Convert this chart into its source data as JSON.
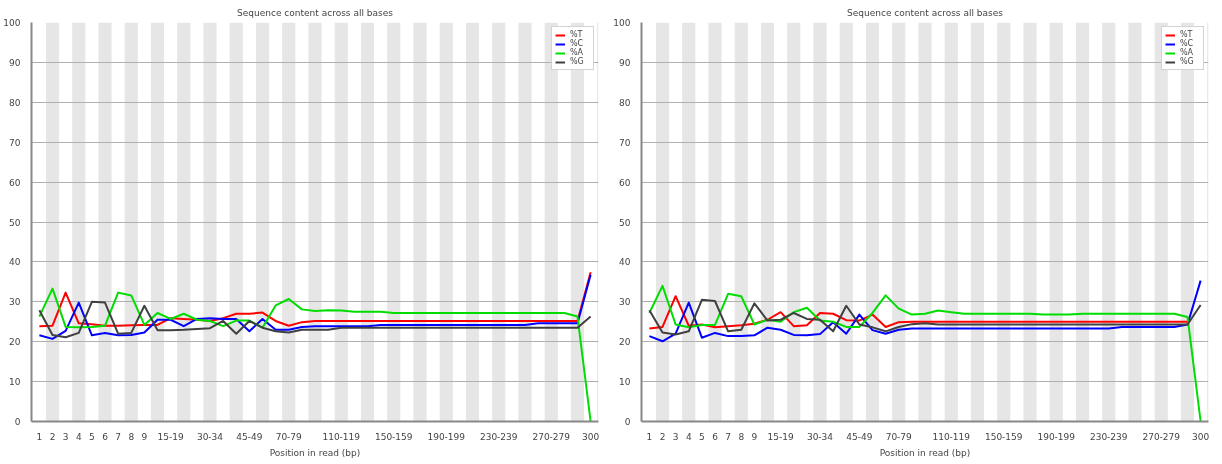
{
  "chart_data": [
    {
      "type": "line",
      "title": "Sequence content across all bases",
      "xlabel": "Position in read (bp)",
      "categories": [
        "1",
        "2",
        "3",
        "4",
        "5",
        "6",
        "7",
        "8",
        "9",
        null,
        "15-19",
        null,
        null,
        "30-34",
        null,
        null,
        "45-49",
        null,
        null,
        "70-79",
        null,
        null,
        null,
        "110-119",
        null,
        null,
        null,
        "150-159",
        null,
        null,
        null,
        "190-199",
        null,
        null,
        null,
        "230-239",
        null,
        null,
        null,
        "270-279",
        null,
        null,
        "300"
      ],
      "ylim": [
        0,
        100
      ],
      "yticks": [
        0,
        10,
        20,
        30,
        40,
        50,
        60,
        70,
        80,
        90,
        100
      ],
      "grid": "y",
      "legend": "top right",
      "marker": "none",
      "series": [
        {
          "name": "%T",
          "color": "#ff0000",
          "values": [
            23.9,
            24,
            32.3,
            24.6,
            24.4,
            24,
            24,
            24.1,
            24.2,
            24.2,
            25.9,
            25.7,
            25.5,
            25.2,
            25.9,
            27,
            27,
            27.3,
            25.2,
            24,
            24.9,
            25.2,
            25.2,
            25.2,
            25.2,
            25.2,
            25.2,
            25.2,
            25.2,
            25.2,
            25.2,
            25.2,
            25.2,
            25.2,
            25.2,
            25.2,
            25.2,
            25.2,
            25.2,
            25.2,
            25.2,
            25.2,
            37.4
          ]
        },
        {
          "name": "%C",
          "color": "#0000ff",
          "values": [
            21.6,
            20.7,
            22.7,
            29.8,
            21.6,
            22.2,
            21.6,
            21.7,
            22.3,
            25.5,
            25.5,
            23.9,
            25.7,
            25.9,
            25.7,
            25.7,
            22.6,
            25.7,
            23,
            23,
            23.7,
            23.9,
            23.9,
            23.9,
            23.9,
            23.9,
            24.2,
            24.2,
            24.2,
            24.2,
            24.2,
            24.2,
            24.2,
            24.2,
            24.2,
            24.2,
            24.2,
            24.2,
            24.6,
            24.6,
            24.6,
            24.6,
            36.8
          ]
        },
        {
          "name": "%A",
          "color": "#00dd00",
          "values": [
            26.3,
            33.3,
            23.7,
            23.6,
            23.7,
            24,
            32.3,
            31.6,
            24.2,
            27.2,
            25.7,
            27,
            25.5,
            25.2,
            23.9,
            25.3,
            25.3,
            23.5,
            29.1,
            30.7,
            28.1,
            27.7,
            27.9,
            27.8,
            27.5,
            27.5,
            27.5,
            27.2,
            27.2,
            27.2,
            27.2,
            27.2,
            27.2,
            27.2,
            27.2,
            27.2,
            27.2,
            27.2,
            27.2,
            27.2,
            27.2,
            26.3,
            0
          ]
        },
        {
          "name": "%G",
          "color": "#404040",
          "values": [
            27.9,
            21.7,
            21.1,
            22.2,
            30,
            29.8,
            22,
            22.2,
            29,
            22.9,
            22.9,
            23,
            23.2,
            23.4,
            25.2,
            22,
            25.2,
            23.5,
            22.6,
            22.3,
            23,
            23,
            23,
            23.5,
            23.5,
            23.5,
            23.5,
            23.5,
            23.5,
            23.5,
            23.5,
            23.5,
            23.5,
            23.5,
            23.5,
            23.5,
            23.5,
            23.5,
            23.5,
            23.5,
            23.5,
            23.5,
            26.3
          ]
        }
      ]
    },
    {
      "type": "line",
      "title": "Sequence content across all bases",
      "xlabel": "Position in read (bp)",
      "categories": [
        "1",
        "2",
        "3",
        "4",
        "5",
        "6",
        "7",
        "8",
        "9",
        null,
        "15-19",
        null,
        null,
        "30-34",
        null,
        null,
        "45-49",
        null,
        null,
        "70-79",
        null,
        null,
        null,
        "110-119",
        null,
        null,
        null,
        "150-159",
        null,
        null,
        null,
        "190-199",
        null,
        null,
        null,
        "230-239",
        null,
        null,
        null,
        "270-279",
        null,
        null,
        "300"
      ],
      "ylim": [
        0,
        100
      ],
      "yticks": [
        0,
        10,
        20,
        30,
        40,
        50,
        60,
        70,
        80,
        90,
        100
      ],
      "grid": "y",
      "legend": "top right",
      "marker": "none",
      "series": [
        {
          "name": "%T",
          "color": "#ff0000",
          "values": [
            23.3,
            23.7,
            31.4,
            24,
            24.3,
            23.6,
            23.9,
            24.1,
            24.5,
            25.5,
            27.4,
            23.9,
            24.1,
            27.2,
            27,
            25.4,
            25.3,
            26.8,
            23.7,
            24.9,
            25,
            25,
            25,
            25,
            25,
            25,
            25,
            25,
            25,
            25,
            25,
            25,
            25,
            25,
            25,
            25,
            25,
            25,
            25,
            25,
            25,
            25,
            null
          ]
        },
        {
          "name": "%C",
          "color": "#0000ff",
          "values": [
            21.4,
            20.1,
            22,
            29.8,
            21,
            22.2,
            21.4,
            21.4,
            21.6,
            23.5,
            23,
            21.7,
            21.6,
            21.9,
            24.9,
            22,
            26.8,
            22.9,
            22,
            23,
            23.3,
            23.3,
            23.3,
            23.3,
            23.3,
            23.3,
            23.3,
            23.3,
            23.3,
            23.3,
            23.3,
            23.3,
            23.3,
            23.3,
            23.3,
            23.3,
            23.7,
            23.7,
            23.7,
            23.7,
            23.7,
            24.3,
            35.3
          ]
        },
        {
          "name": "%A",
          "color": "#00dd00",
          "values": [
            27.2,
            34,
            24.3,
            23.6,
            24.2,
            24.2,
            32,
            31.4,
            24.3,
            25.5,
            25,
            27.4,
            28.5,
            25.3,
            25,
            23.7,
            23.7,
            27.2,
            31.6,
            28.3,
            26.8,
            27,
            27.8,
            27.4,
            27,
            27,
            27,
            27,
            27,
            27,
            26.8,
            26.8,
            26.8,
            27,
            27,
            27,
            27,
            27,
            27,
            27,
            27,
            26.2,
            0
          ]
        },
        {
          "name": "%G",
          "color": "#404040",
          "values": [
            27.9,
            22.3,
            21.8,
            22.6,
            30.5,
            30.2,
            22.6,
            23,
            29.6,
            25.3,
            25.5,
            27.2,
            25.7,
            25.5,
            22.6,
            29,
            24.3,
            23.6,
            22.6,
            23.7,
            24.4,
            24.6,
            24.3,
            24.3,
            24.3,
            24.3,
            24.3,
            24.3,
            24.3,
            24.3,
            24.3,
            24.3,
            24.3,
            24.3,
            24.3,
            24.3,
            24.3,
            24.3,
            24.3,
            24.3,
            24.3,
            24.3,
            29.2
          ]
        }
      ]
    }
  ]
}
